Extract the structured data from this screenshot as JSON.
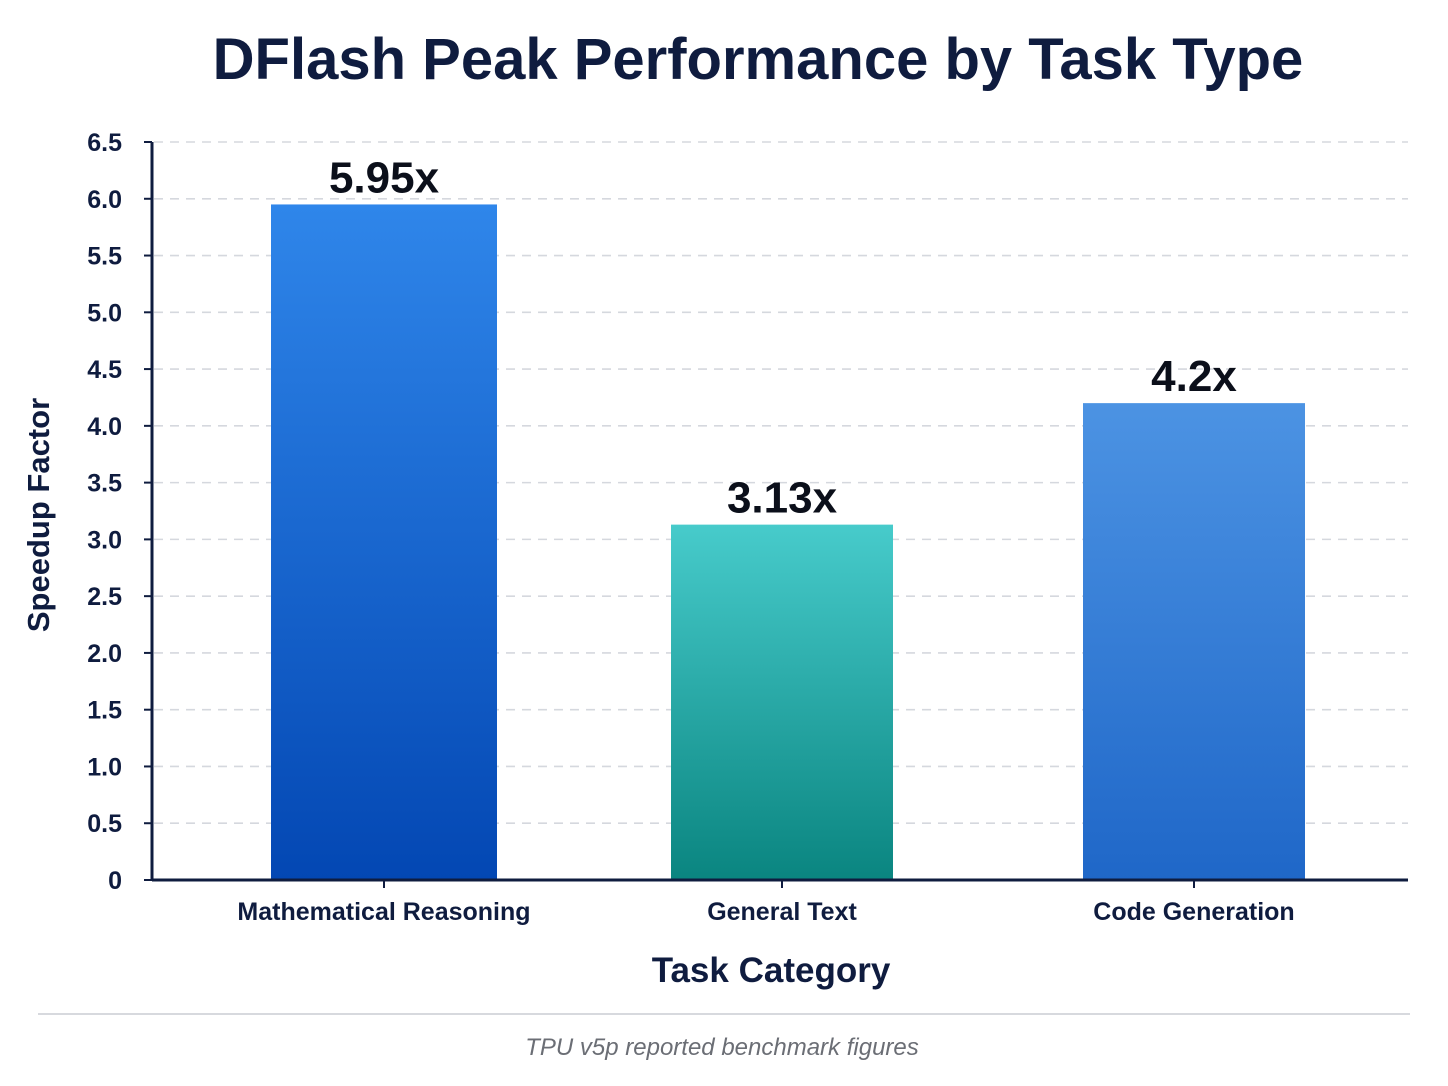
{
  "chart_data": {
    "type": "bar",
    "title": "DFlash Peak Performance by Task Type",
    "xlabel": "Task Category",
    "ylabel": "Speedup Factor",
    "categories": [
      "Mathematical Reasoning",
      "General Text",
      "Code Generation"
    ],
    "values": [
      5.95,
      3.13,
      4.2
    ],
    "data_labels": [
      "5.95x",
      "3.13x",
      "4.2x"
    ],
    "ylim": [
      0,
      6.5
    ],
    "yticks": [
      0,
      0.5,
      1.0,
      1.5,
      2.0,
      2.5,
      3.0,
      3.5,
      4.0,
      4.5,
      5.0,
      5.5,
      6.0,
      6.5
    ],
    "ytick_labels": [
      "0",
      "0.5",
      "1.0",
      "1.5",
      "2.0",
      "2.5",
      "3.0",
      "3.5",
      "4.0",
      "4.5",
      "5.0",
      "5.5",
      "6.0",
      "6.5"
    ],
    "grid": "horizontal dashed",
    "bar_colors": [
      {
        "top": "#2f86ea",
        "bottom": "#0347b3"
      },
      {
        "top": "#47cbcb",
        "bottom": "#0a8580"
      },
      {
        "top": "#4c93e3",
        "bottom": "#1f67c8"
      }
    ],
    "footnote": "TPU v5p reported benchmark figures"
  },
  "colors": {
    "text_dark": "#0f1c3f",
    "axis": "#0f1c3f",
    "grid": "#d5d8de",
    "footnote": "#6b6e75",
    "divider": "#d7d9de"
  }
}
